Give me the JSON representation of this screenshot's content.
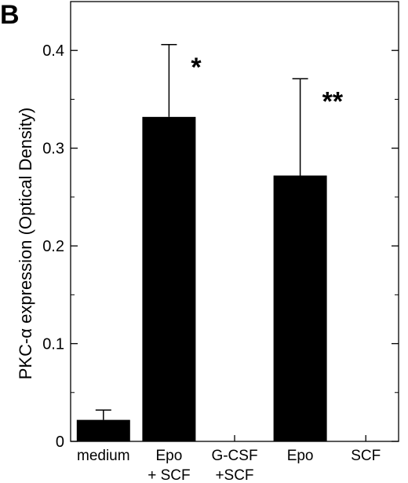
{
  "panel_label": "B",
  "chart_data": {
    "type": "bar",
    "ylabel": "PKC-α  expression (Optical Density)",
    "ylim": [
      0,
      0.45
    ],
    "yticks": [
      0,
      0.1,
      0.2,
      0.3,
      0.4
    ],
    "ytick_labels": [
      "0",
      "0.1",
      "0.2",
      "0.3",
      "0.4"
    ],
    "categories": [
      [
        "medium"
      ],
      [
        "Epo",
        "+ SCF"
      ],
      [
        "G-CSF",
        "+SCF"
      ],
      [
        "Epo"
      ],
      [
        "SCF"
      ]
    ],
    "values": [
      0.022,
      0.332,
      0,
      0.272,
      0
    ],
    "error_upper": [
      0.032,
      0.406,
      null,
      0.371,
      null
    ],
    "annotations": [
      "",
      "*",
      "",
      "**",
      ""
    ],
    "bar_color": "#000000"
  }
}
